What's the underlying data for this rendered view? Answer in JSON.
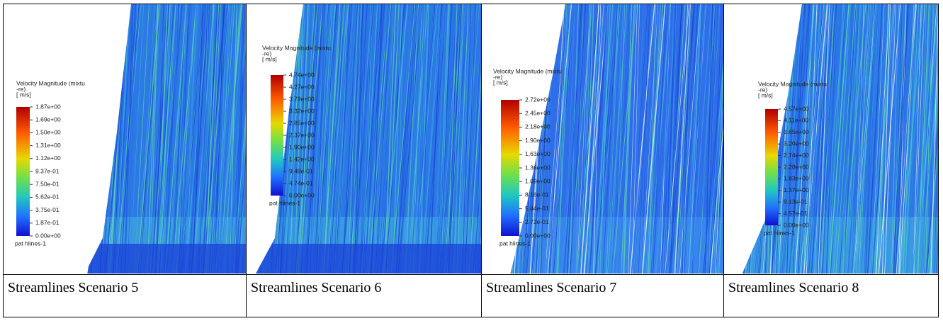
{
  "panels": [
    {
      "legend_title": [
        "Velocity Magnitude (mixtu",
        "-re)",
        "[ m/s]"
      ],
      "ticks": [
        "1.87e+00",
        "1.69e+00",
        "1.50e+00",
        "1.31e+00",
        "1.12e+00",
        "9.37e-01",
        "7.50e-01",
        "5.62e-01",
        "3.75e-01",
        "1.87e-01",
        "0.00e+00"
      ],
      "surface": "pat hlines-1",
      "caption": "Streamlines Scenario 5"
    },
    {
      "legend_title": [
        "Velocity Magnitude (mixtu",
        "-re)",
        "[ m/s]"
      ],
      "ticks": [
        "4.74e+00",
        "4.27e+00",
        "3.79e+00",
        "3.32e+00",
        "2.85e+00",
        "2.37e+00",
        "1.90e+00",
        "1.42e+00",
        "9.48e-01",
        "4.74e-01",
        "0.00e+00"
      ],
      "surface": "pat hlines-1",
      "caption": "Streamlines Scenario 6"
    },
    {
      "legend_title": [
        "Velocity Magnitude (mixtu",
        "-re)",
        "[ m/s]"
      ],
      "ticks": [
        "2.72e+00",
        "2.45e+00",
        "2.18e+00",
        "1.90e+00",
        "1.63e+00",
        "1.36e+00",
        "1.09e+00",
        "8.16e-01",
        "5.44e-01",
        "2.72e-01",
        "0.00e+00"
      ],
      "surface": "pat hlines-1",
      "caption": "Streamlines Scenario 7"
    },
    {
      "legend_title": [
        "Velocity Magnitude (mixtu",
        "-re)",
        "[ m/s]"
      ],
      "ticks": [
        "4.57e+00",
        "4.11e+00",
        "3.65e+00",
        "3.20e+00",
        "2.74e+00",
        "2.28e+00",
        "1.83e+00",
        "1.37e+00",
        "9.13e-01",
        "4.57e-01",
        "0.00e+00"
      ],
      "surface": "pat hlines-1",
      "caption": "Streamlines Scenario 8"
    }
  ]
}
